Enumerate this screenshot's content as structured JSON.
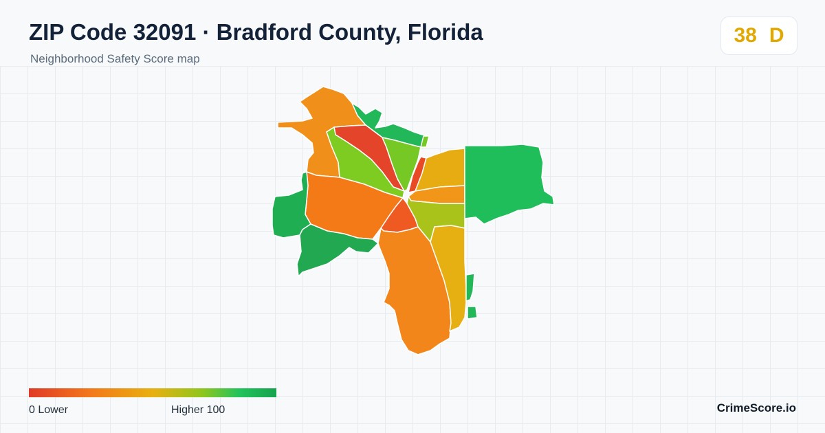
{
  "header": {
    "title": "ZIP Code 32091 · Bradford County, Florida",
    "subtitle": "Neighborhood Safety Score map"
  },
  "score": {
    "value": "38",
    "grade": "D",
    "color": "#e0a800"
  },
  "legend": {
    "low_label": "0  Lower",
    "high_label": "Higher  100",
    "colors": [
      "#e03a26",
      "#f3781a",
      "#e8b011",
      "#8fc61c",
      "#22c35c",
      "#16a24e"
    ]
  },
  "map": {
    "neighborhoods": [
      {
        "id": "north-orange",
        "color": "#f0901a"
      },
      {
        "id": "center-red",
        "color": "#e4452a"
      },
      {
        "id": "center-lime-west",
        "color": "#7ecb22"
      },
      {
        "id": "center-lime-east",
        "color": "#76c824"
      },
      {
        "id": "north-green-rim",
        "color": "#22b85a"
      },
      {
        "id": "east-gold-upper",
        "color": "#e6ac12"
      },
      {
        "id": "east-orange-small",
        "color": "#f2961a"
      },
      {
        "id": "east-green-large",
        "color": "#20bd5b"
      },
      {
        "id": "west-orange-large",
        "color": "#f47a18"
      },
      {
        "id": "center-red-south",
        "color": "#ef5a22"
      },
      {
        "id": "east-olive",
        "color": "#a9c31a"
      },
      {
        "id": "west-green",
        "color": "#1fae52"
      },
      {
        "id": "southwest-green",
        "color": "#21a851"
      },
      {
        "id": "south-orange-long",
        "color": "#f2861a"
      },
      {
        "id": "southeast-gold",
        "color": "#e6b012"
      },
      {
        "id": "east-green-strip",
        "color": "#22b85a"
      },
      {
        "id": "center-red-spike",
        "color": "#e94a26"
      }
    ]
  },
  "brand": {
    "name": "CrimeScore.io"
  }
}
